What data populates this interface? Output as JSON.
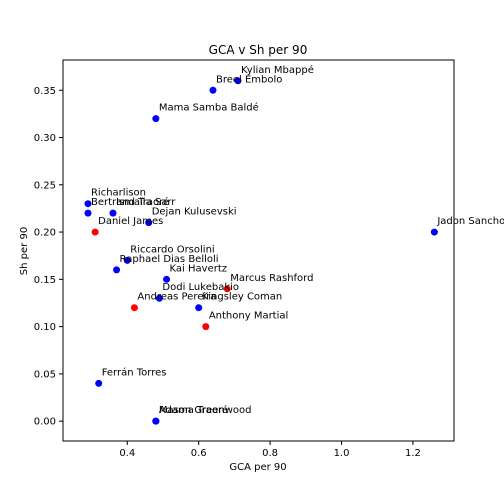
{
  "chart_data": {
    "type": "scatter",
    "title": "GCA v Sh per 90",
    "xlabel": "GCA per 90",
    "ylabel": "Sh per 90",
    "xlim": [
      0.22,
      1.315
    ],
    "ylim": [
      -0.021,
      0.382
    ],
    "xticks": [
      "0.4",
      "0.6",
      "0.8",
      "1.0",
      "1.2"
    ],
    "xtick_values": [
      0.4,
      0.6,
      0.8,
      1.0,
      1.2
    ],
    "yticks": [
      "0.00",
      "0.05",
      "0.10",
      "0.15",
      "0.20",
      "0.25",
      "0.30",
      "0.35"
    ],
    "ytick_values": [
      0.0,
      0.05,
      0.1,
      0.15,
      0.2,
      0.25,
      0.3,
      0.35
    ],
    "grid": false,
    "colors": {
      "blue": "#0000ff",
      "red": "#ff0000"
    },
    "points": [
      {
        "label": "Kylian Mbappé",
        "x": 0.71,
        "y": 0.36,
        "color": "#0000ff"
      },
      {
        "label": "Breel Embolo",
        "x": 0.64,
        "y": 0.35,
        "color": "#0000ff"
      },
      {
        "label": "Mama Samba Baldé",
        "x": 0.48,
        "y": 0.32,
        "color": "#0000ff"
      },
      {
        "label": "Richarlison",
        "x": 0.29,
        "y": 0.23,
        "color": "#0000ff"
      },
      {
        "label": "Bertrand Traoré",
        "x": 0.29,
        "y": 0.22,
        "color": "#0000ff"
      },
      {
        "label": "Ismaïla Sarr",
        "x": 0.36,
        "y": 0.22,
        "color": "#0000ff"
      },
      {
        "label": "Dejan Kulusevski",
        "x": 0.46,
        "y": 0.21,
        "color": "#0000ff"
      },
      {
        "label": "Daniel James",
        "x": 0.31,
        "y": 0.2,
        "color": "#ff0000"
      },
      {
        "label": "Jadon Sancho",
        "x": 1.26,
        "y": 0.2,
        "color": "#0000ff"
      },
      {
        "label": "Riccardo Orsolini",
        "x": 0.4,
        "y": 0.17,
        "color": "#0000ff"
      },
      {
        "label": "Raphael Dias Belloli",
        "x": 0.37,
        "y": 0.16,
        "color": "#0000ff"
      },
      {
        "label": "Kai Havertz",
        "x": 0.51,
        "y": 0.15,
        "color": "#0000ff"
      },
      {
        "label": "Marcus Rashford",
        "x": 0.68,
        "y": 0.14,
        "color": "#ff0000"
      },
      {
        "label": "Dodi Lukebakio",
        "x": 0.49,
        "y": 0.13,
        "color": "#0000ff"
      },
      {
        "label": "Andreas Pereira",
        "x": 0.42,
        "y": 0.12,
        "color": "#ff0000"
      },
      {
        "label": "Kingsley Coman",
        "x": 0.6,
        "y": 0.12,
        "color": "#0000ff"
      },
      {
        "label": "Anthony Martial",
        "x": 0.62,
        "y": 0.1,
        "color": "#ff0000"
      },
      {
        "label": "Ferrán Torres",
        "x": 0.32,
        "y": 0.04,
        "color": "#0000ff"
      },
      {
        "label": "Mason Greenwood",
        "x": 0.48,
        "y": 0.0,
        "color": "#0000ff"
      },
      {
        "label": "Adama Traoré",
        "x": 0.48,
        "y": 0.0,
        "color": "#0000ff"
      }
    ]
  }
}
